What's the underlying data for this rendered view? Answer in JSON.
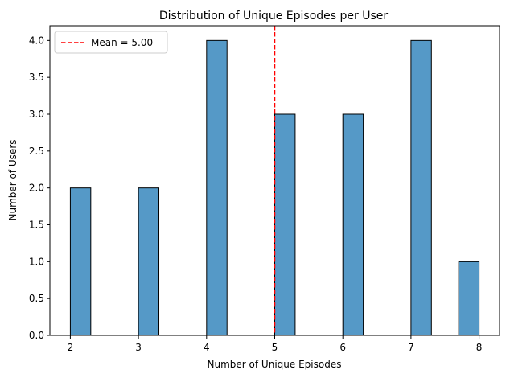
{
  "chart_data": {
    "type": "bar",
    "title": "Distribution of Unique Episodes per User",
    "xlabel": "Number of Unique Episodes",
    "ylabel": "Number of Users",
    "xlim": [
      1.7,
      8.3
    ],
    "ylim": [
      0,
      4.2
    ],
    "x_ticks": [
      2,
      3,
      4,
      5,
      6,
      7,
      8
    ],
    "x_tick_labels": [
      "2",
      "3",
      "4",
      "5",
      "6",
      "7",
      "8"
    ],
    "y_ticks": [
      0,
      0.5,
      1,
      1.5,
      2,
      2.5,
      3,
      3.5,
      4
    ],
    "y_tick_labels": [
      "0.0",
      "0.5",
      "1.0",
      "1.5",
      "2.0",
      "2.5",
      "3.0",
      "3.5",
      "4.0"
    ],
    "bin_width": 0.3,
    "bins": [
      {
        "start": 2.0,
        "count": 2
      },
      {
        "start": 3.0,
        "count": 2
      },
      {
        "start": 4.0,
        "count": 4
      },
      {
        "start": 5.0,
        "count": 3
      },
      {
        "start": 6.0,
        "count": 3
      },
      {
        "start": 7.0,
        "count": 4
      },
      {
        "start": 7.7,
        "count": 1
      }
    ],
    "mean": {
      "value": 5.0,
      "label": "Mean = 5.00"
    },
    "legend": {
      "location": "upper-left"
    },
    "grid": false,
    "colors": {
      "bar": "#5599c7",
      "bar_edge": "#000000",
      "mean_line": "#ff0000"
    }
  }
}
